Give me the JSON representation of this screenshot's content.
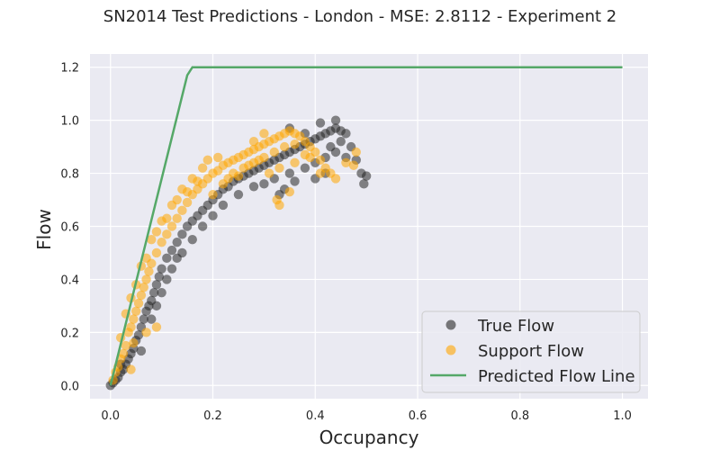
{
  "chart_data": {
    "type": "scatter",
    "title": "SN2014 Test Predictions - London - MSE: 2.8112 - Experiment 2",
    "xlabel": "Occupancy",
    "ylabel": "Flow",
    "xlim": [
      -0.04,
      1.05
    ],
    "ylim": [
      -0.05,
      1.25
    ],
    "xticks": [
      0.0,
      0.2,
      0.4,
      0.6,
      0.8,
      1.0
    ],
    "xtick_labels": [
      "0.0",
      "0.2",
      "0.4",
      "0.6",
      "0.8",
      "1.0"
    ],
    "yticks": [
      0.0,
      0.2,
      0.4,
      0.6,
      0.8,
      1.0,
      1.2
    ],
    "ytick_labels": [
      "0.0",
      "0.2",
      "0.4",
      "0.6",
      "0.8",
      "1.0",
      "1.2"
    ],
    "grid": true,
    "legend_position": "bottom-right",
    "series": [
      {
        "name": "True Flow",
        "kind": "scatter",
        "color": "#262626",
        "points": [
          [
            0.0,
            0.0
          ],
          [
            0.005,
            0.01
          ],
          [
            0.01,
            0.02
          ],
          [
            0.015,
            0.03
          ],
          [
            0.02,
            0.05
          ],
          [
            0.025,
            0.06
          ],
          [
            0.03,
            0.08
          ],
          [
            0.035,
            0.1
          ],
          [
            0.04,
            0.12
          ],
          [
            0.045,
            0.14
          ],
          [
            0.05,
            0.17
          ],
          [
            0.055,
            0.19
          ],
          [
            0.06,
            0.22
          ],
          [
            0.065,
            0.25
          ],
          [
            0.07,
            0.28
          ],
          [
            0.075,
            0.3
          ],
          [
            0.08,
            0.32
          ],
          [
            0.085,
            0.35
          ],
          [
            0.09,
            0.38
          ],
          [
            0.095,
            0.41
          ],
          [
            0.1,
            0.44
          ],
          [
            0.11,
            0.48
          ],
          [
            0.12,
            0.51
          ],
          [
            0.13,
            0.54
          ],
          [
            0.14,
            0.57
          ],
          [
            0.15,
            0.6
          ],
          [
            0.16,
            0.62
          ],
          [
            0.17,
            0.64
          ],
          [
            0.18,
            0.66
          ],
          [
            0.19,
            0.68
          ],
          [
            0.2,
            0.7
          ],
          [
            0.21,
            0.72
          ],
          [
            0.22,
            0.74
          ],
          [
            0.23,
            0.75
          ],
          [
            0.24,
            0.77
          ],
          [
            0.25,
            0.78
          ],
          [
            0.26,
            0.79
          ],
          [
            0.27,
            0.8
          ],
          [
            0.28,
            0.81
          ],
          [
            0.29,
            0.82
          ],
          [
            0.3,
            0.83
          ],
          [
            0.31,
            0.84
          ],
          [
            0.32,
            0.85
          ],
          [
            0.33,
            0.86
          ],
          [
            0.34,
            0.87
          ],
          [
            0.35,
            0.88
          ],
          [
            0.36,
            0.89
          ],
          [
            0.37,
            0.9
          ],
          [
            0.38,
            0.91
          ],
          [
            0.39,
            0.92
          ],
          [
            0.4,
            0.93
          ],
          [
            0.41,
            0.94
          ],
          [
            0.42,
            0.95
          ],
          [
            0.43,
            0.96
          ],
          [
            0.44,
            0.97
          ],
          [
            0.45,
            0.96
          ],
          [
            0.46,
            0.95
          ],
          [
            0.47,
            0.9
          ],
          [
            0.48,
            0.85
          ],
          [
            0.49,
            0.8
          ],
          [
            0.495,
            0.76
          ],
          [
            0.5,
            0.79
          ],
          [
            0.08,
            0.25
          ],
          [
            0.09,
            0.3
          ],
          [
            0.1,
            0.35
          ],
          [
            0.11,
            0.4
          ],
          [
            0.12,
            0.44
          ],
          [
            0.13,
            0.48
          ],
          [
            0.14,
            0.5
          ],
          [
            0.16,
            0.55
          ],
          [
            0.18,
            0.6
          ],
          [
            0.2,
            0.64
          ],
          [
            0.22,
            0.68
          ],
          [
            0.25,
            0.72
          ],
          [
            0.28,
            0.75
          ],
          [
            0.3,
            0.76
          ],
          [
            0.32,
            0.78
          ],
          [
            0.35,
            0.8
          ],
          [
            0.38,
            0.82
          ],
          [
            0.4,
            0.84
          ],
          [
            0.42,
            0.86
          ],
          [
            0.44,
            0.88
          ],
          [
            0.46,
            0.86
          ],
          [
            0.36,
            0.77
          ],
          [
            0.34,
            0.74
          ],
          [
            0.33,
            0.72
          ],
          [
            0.4,
            0.78
          ],
          [
            0.42,
            0.8
          ],
          [
            0.43,
            0.9
          ],
          [
            0.45,
            0.92
          ],
          [
            0.38,
            0.95
          ],
          [
            0.41,
            0.99
          ],
          [
            0.44,
            1.0
          ],
          [
            0.35,
            0.97
          ],
          [
            0.06,
            0.13
          ],
          [
            0.02,
            0.08
          ]
        ]
      },
      {
        "name": "Support Flow",
        "kind": "scatter",
        "color": "#ffa500",
        "points": [
          [
            0.005,
            0.02
          ],
          [
            0.01,
            0.05
          ],
          [
            0.015,
            0.07
          ],
          [
            0.02,
            0.1
          ],
          [
            0.025,
            0.12
          ],
          [
            0.03,
            0.15
          ],
          [
            0.035,
            0.2
          ],
          [
            0.04,
            0.22
          ],
          [
            0.045,
            0.25
          ],
          [
            0.05,
            0.28
          ],
          [
            0.055,
            0.31
          ],
          [
            0.06,
            0.34
          ],
          [
            0.065,
            0.37
          ],
          [
            0.07,
            0.4
          ],
          [
            0.075,
            0.43
          ],
          [
            0.08,
            0.46
          ],
          [
            0.09,
            0.5
          ],
          [
            0.1,
            0.54
          ],
          [
            0.11,
            0.57
          ],
          [
            0.12,
            0.6
          ],
          [
            0.13,
            0.63
          ],
          [
            0.14,
            0.66
          ],
          [
            0.15,
            0.69
          ],
          [
            0.16,
            0.72
          ],
          [
            0.17,
            0.74
          ],
          [
            0.18,
            0.76
          ],
          [
            0.19,
            0.78
          ],
          [
            0.2,
            0.8
          ],
          [
            0.21,
            0.81
          ],
          [
            0.22,
            0.83
          ],
          [
            0.23,
            0.84
          ],
          [
            0.24,
            0.85
          ],
          [
            0.25,
            0.86
          ],
          [
            0.26,
            0.87
          ],
          [
            0.27,
            0.88
          ],
          [
            0.28,
            0.89
          ],
          [
            0.29,
            0.9
          ],
          [
            0.3,
            0.91
          ],
          [
            0.31,
            0.92
          ],
          [
            0.32,
            0.93
          ],
          [
            0.33,
            0.94
          ],
          [
            0.34,
            0.95
          ],
          [
            0.35,
            0.96
          ],
          [
            0.36,
            0.95
          ],
          [
            0.37,
            0.94
          ],
          [
            0.38,
            0.92
          ],
          [
            0.39,
            0.9
          ],
          [
            0.4,
            0.88
          ],
          [
            0.41,
            0.85
          ],
          [
            0.42,
            0.82
          ],
          [
            0.43,
            0.8
          ],
          [
            0.44,
            0.78
          ],
          [
            0.46,
            0.84
          ],
          [
            0.48,
            0.88
          ],
          [
            0.475,
            0.83
          ],
          [
            0.33,
            0.68
          ],
          [
            0.325,
            0.7
          ],
          [
            0.35,
            0.73
          ],
          [
            0.2,
            0.72
          ],
          [
            0.22,
            0.76
          ],
          [
            0.24,
            0.8
          ],
          [
            0.26,
            0.82
          ],
          [
            0.28,
            0.84
          ],
          [
            0.3,
            0.86
          ],
          [
            0.32,
            0.88
          ],
          [
            0.34,
            0.9
          ],
          [
            0.36,
            0.91
          ],
          [
            0.38,
            0.87
          ],
          [
            0.18,
            0.82
          ],
          [
            0.16,
            0.78
          ],
          [
            0.14,
            0.74
          ],
          [
            0.12,
            0.68
          ],
          [
            0.1,
            0.62
          ],
          [
            0.08,
            0.55
          ],
          [
            0.06,
            0.45
          ],
          [
            0.04,
            0.33
          ],
          [
            0.03,
            0.27
          ],
          [
            0.02,
            0.18
          ],
          [
            0.05,
            0.38
          ],
          [
            0.07,
            0.48
          ],
          [
            0.09,
            0.58
          ],
          [
            0.11,
            0.63
          ],
          [
            0.13,
            0.7
          ],
          [
            0.15,
            0.73
          ],
          [
            0.17,
            0.77
          ],
          [
            0.19,
            0.85
          ],
          [
            0.21,
            0.86
          ],
          [
            0.23,
            0.78
          ],
          [
            0.25,
            0.79
          ],
          [
            0.27,
            0.83
          ],
          [
            0.29,
            0.85
          ],
          [
            0.31,
            0.8
          ],
          [
            0.33,
            0.82
          ],
          [
            0.36,
            0.84
          ],
          [
            0.39,
            0.86
          ],
          [
            0.41,
            0.8
          ],
          [
            0.07,
            0.2
          ],
          [
            0.09,
            0.22
          ],
          [
            0.04,
            0.06
          ],
          [
            0.045,
            0.16
          ],
          [
            0.3,
            0.95
          ],
          [
            0.28,
            0.92
          ]
        ]
      },
      {
        "name": "Predicted Flow Line",
        "kind": "line",
        "color": "#55a868",
        "points": [
          [
            0.0,
            0.0
          ],
          [
            0.15,
            1.17
          ],
          [
            0.16,
            1.2
          ],
          [
            1.0,
            1.2
          ]
        ]
      }
    ]
  }
}
